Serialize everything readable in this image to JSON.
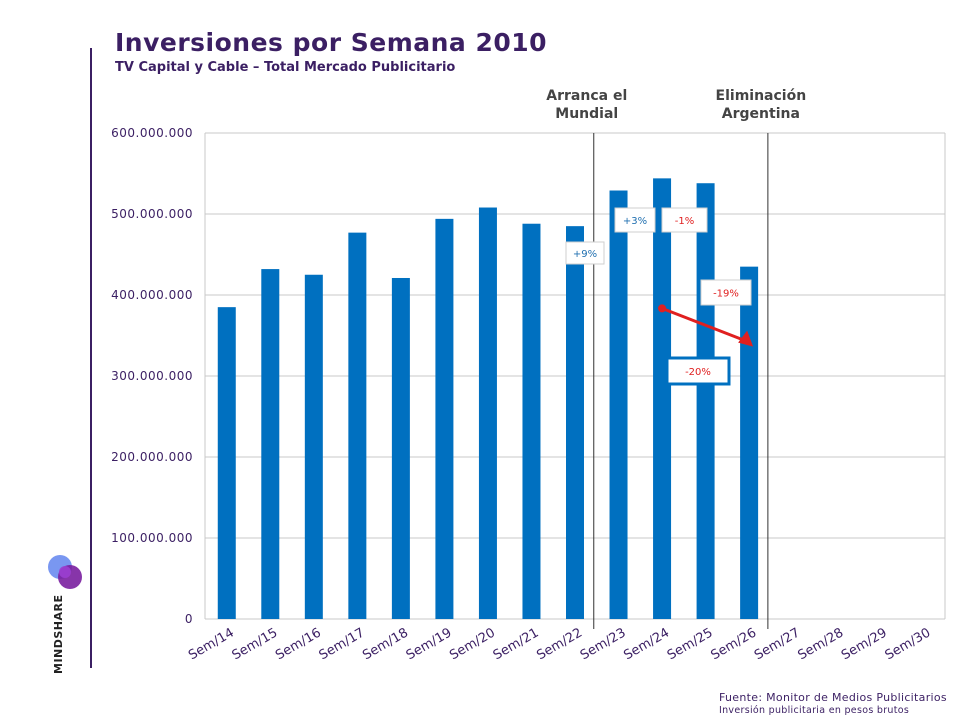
{
  "header": {
    "title": "Inversiones por Semana 2010",
    "subtitle": "TV Capital y Cable – Total Mercado Publicitario"
  },
  "brand": {
    "name": "MINDSHARE",
    "logo_icon": "mindshare-logo-icon"
  },
  "footer": {
    "source": "Fuente: Monitor de Medios Publicitarios",
    "note": "Inversión publicitaria en pesos brutos"
  },
  "colors": {
    "bar": "#0070c0",
    "title": "#3b1f63",
    "negative": "#e02020",
    "positive": "#1f6fb0"
  },
  "chart_data": {
    "type": "bar",
    "categories": [
      "Sem/14",
      "Sem/15",
      "Sem/16",
      "Sem/17",
      "Sem/18",
      "Sem/19",
      "Sem/20",
      "Sem/21",
      "Sem/22",
      "Sem/23",
      "Sem/24",
      "Sem/25",
      "Sem/26",
      "Sem/27",
      "Sem/28",
      "Sem/29",
      "Sem/30"
    ],
    "values": [
      385000000,
      432000000,
      425000000,
      477000000,
      421000000,
      494000000,
      508000000,
      488000000,
      485000000,
      529000000,
      544000000,
      538000000,
      435000000,
      null,
      null,
      null,
      null
    ],
    "ylim": [
      0,
      600000000
    ],
    "yticks": [
      0,
      100000000,
      200000000,
      300000000,
      400000000,
      500000000,
      600000000
    ],
    "ytick_labels": [
      "0",
      "100.000.000",
      "200.000.000",
      "300.000.000",
      "400.000.000",
      "500.000.000",
      "600.000.000"
    ],
    "grid": true,
    "markers": [
      {
        "label_line1": "Arranca el",
        "label_line2": "Mundial",
        "after_category": "Sem/22"
      },
      {
        "label_line1": "Eliminación",
        "label_line2": "Argentina",
        "after_category": "Sem/26"
      }
    ],
    "annotations": [
      {
        "text": "+9%",
        "category": "Sem/22",
        "sign": "positive"
      },
      {
        "text": "+3%",
        "category": "Sem/23",
        "sign": "positive"
      },
      {
        "text": "-1%",
        "category": "Sem/24",
        "sign": "negative"
      },
      {
        "text": "-19%",
        "category": "Sem/26",
        "sign": "negative"
      },
      {
        "text": "-20%",
        "category": "Sem/25",
        "sign": "negative"
      }
    ],
    "trend_arrow": {
      "from_category": "Sem/24",
      "to_category": "Sem/26",
      "color": "#e02020"
    }
  }
}
